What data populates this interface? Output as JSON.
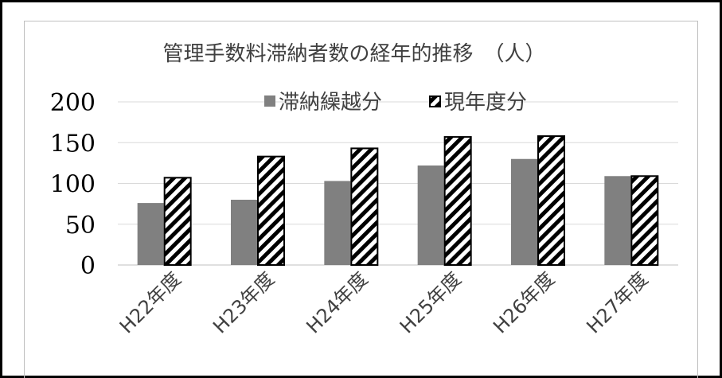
{
  "chart_data": {
    "type": "bar",
    "title": "管理手数料滞納者数の経年的推移　（人）",
    "categories": [
      "H22年度",
      "H23年度",
      "H24年度",
      "H25年度",
      "H26年度",
      "H27年度"
    ],
    "series": [
      {
        "name": "滞納繰越分",
        "values": [
          76,
          80,
          103,
          122,
          130,
          109
        ],
        "color": "#808080",
        "pattern": "solid"
      },
      {
        "name": "現年度分",
        "values": [
          107,
          133,
          143,
          157,
          158,
          109
        ],
        "color": "#000000",
        "pattern": "diagonal-stripes"
      }
    ],
    "ylim": [
      0,
      200
    ],
    "yticks": [
      "0",
      "50",
      "100",
      "150",
      "200"
    ],
    "grid": true,
    "legend_position": "top-center",
    "xlabel": "",
    "ylabel": ""
  }
}
